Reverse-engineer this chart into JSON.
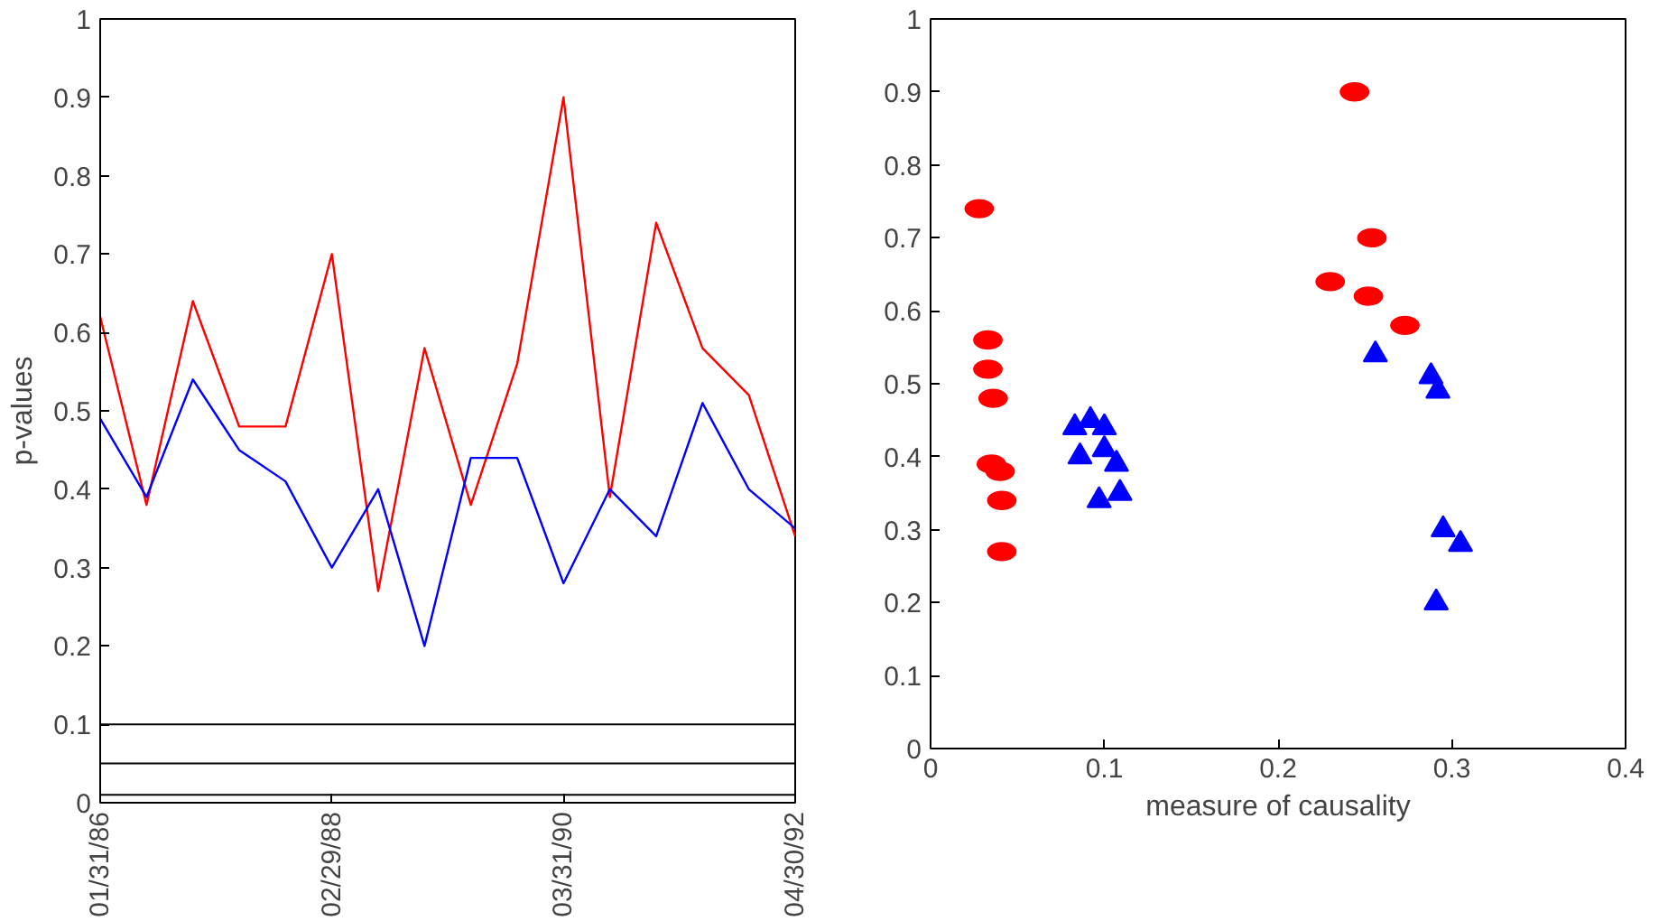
{
  "chart_data": [
    {
      "type": "line",
      "ylabel": "p-values",
      "categories": [
        "01/31/86",
        null,
        null,
        null,
        null,
        "02/29/88",
        null,
        null,
        null,
        null,
        "03/31/90",
        null,
        null,
        null,
        null,
        "04/30/92"
      ],
      "series": [
        {
          "color": "#ff0000",
          "values": [
            0.62,
            0.38,
            0.64,
            0.48,
            0.48,
            0.7,
            0.27,
            0.58,
            0.38,
            0.56,
            0.9,
            0.39,
            0.74,
            0.58,
            0.52,
            0.34
          ]
        },
        {
          "color": "#0000ff",
          "values": [
            0.49,
            0.39,
            0.54,
            0.45,
            0.41,
            0.3,
            0.4,
            0.2,
            0.44,
            0.44,
            0.28,
            0.4,
            0.34,
            0.51,
            0.4,
            0.35
          ]
        }
      ],
      "ylim": [
        0,
        1
      ],
      "yticks": [
        0,
        0.1,
        0.2,
        0.3,
        0.4,
        0.5,
        0.6,
        0.7,
        0.8,
        0.9,
        1
      ],
      "ref_lines": [
        {
          "axis": "y",
          "value": 0.1,
          "color": "#000000"
        },
        {
          "axis": "y",
          "value": 0.05,
          "color": "#000000"
        },
        {
          "axis": "y",
          "value": 0.01,
          "color": "#000000"
        }
      ],
      "marker": "none",
      "grid": false
    },
    {
      "type": "scatter",
      "xlabel": "measure of causality",
      "series": [
        {
          "color": "#ff0000",
          "marker": "circle",
          "x": [
            0.028,
            0.033,
            0.033,
            0.036,
            0.035,
            0.04,
            0.041,
            0.041,
            0.244,
            0.254,
            0.23,
            0.252,
            0.273
          ],
          "values": [
            0.74,
            0.56,
            0.52,
            0.48,
            0.39,
            0.38,
            0.34,
            0.27,
            0.9,
            0.7,
            0.64,
            0.62,
            0.58
          ]
        },
        {
          "color": "#0000ff",
          "marker": "triangle",
          "x": [
            0.083,
            0.092,
            0.1,
            0.086,
            0.1,
            0.107,
            0.097,
            0.109,
            0.256,
            0.288,
            0.292,
            0.295,
            0.305,
            0.291
          ],
          "values": [
            0.44,
            0.45,
            0.44,
            0.4,
            0.41,
            0.39,
            0.34,
            0.35,
            0.54,
            0.51,
            0.49,
            0.3,
            0.28,
            0.2
          ]
        }
      ],
      "xlim": [
        0,
        0.4
      ],
      "xticks": [
        0,
        0.1,
        0.2,
        0.3,
        0.4
      ],
      "ylim": [
        0,
        1
      ],
      "yticks": [
        0,
        0.1,
        0.2,
        0.3,
        0.4,
        0.5,
        0.6,
        0.7,
        0.8,
        0.9,
        1
      ],
      "grid": false
    }
  ]
}
